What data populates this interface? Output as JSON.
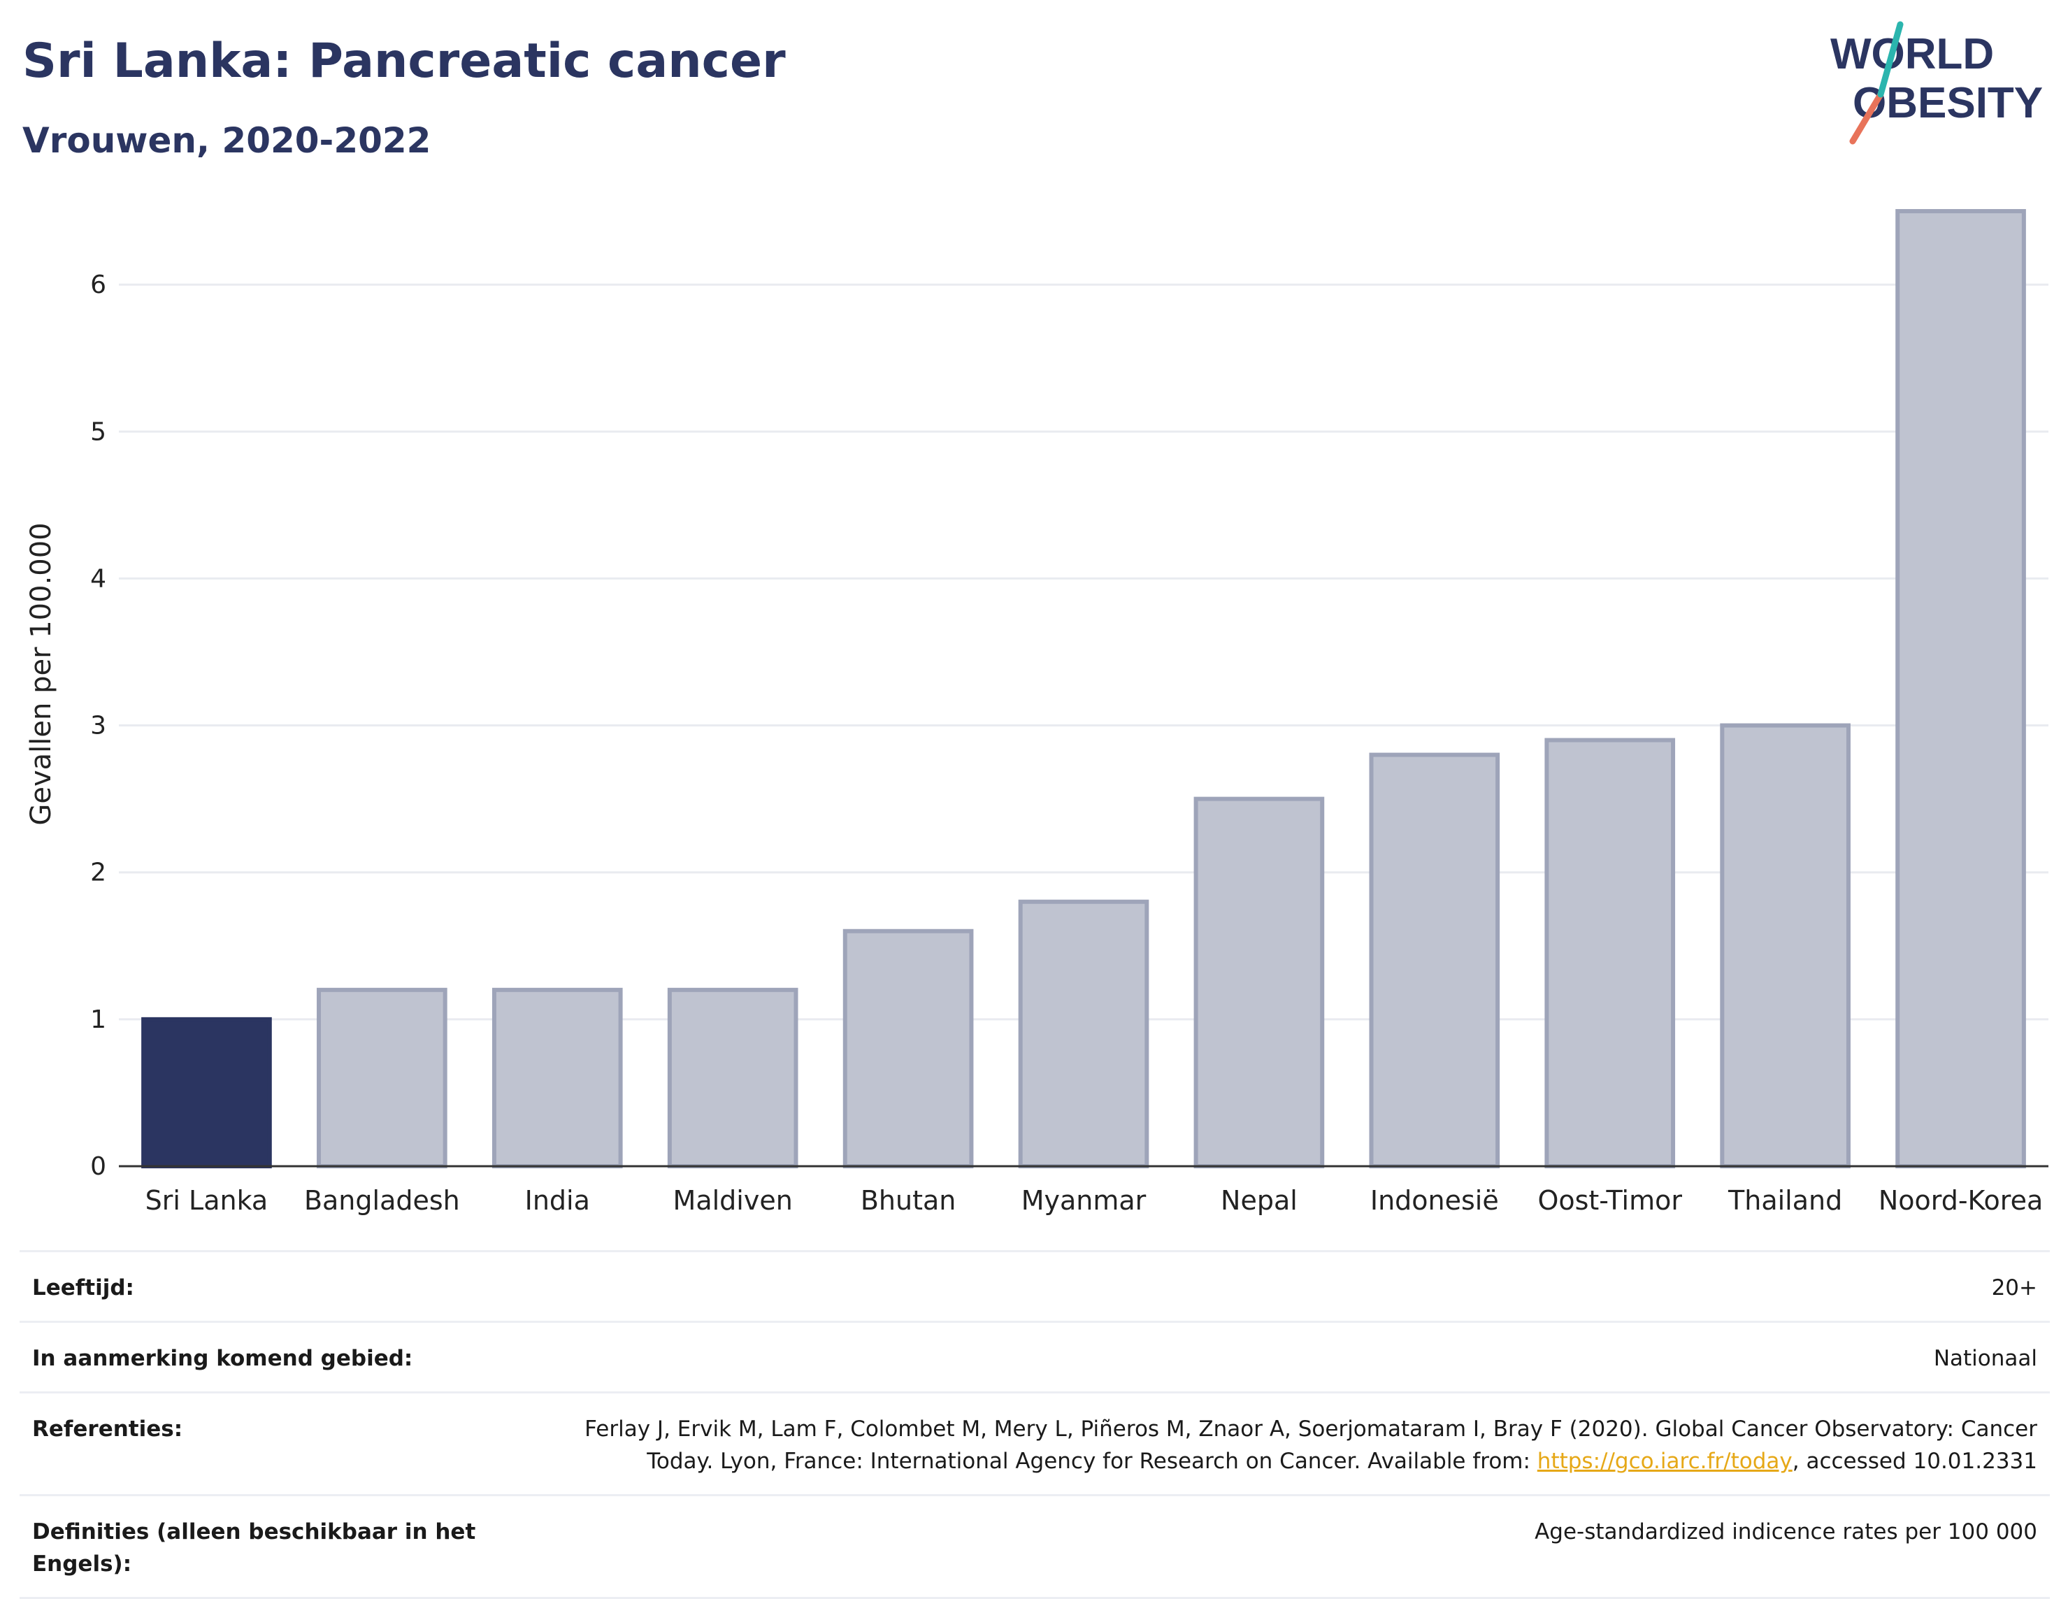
{
  "header": {
    "title": "Sri Lanka: Pancreatic cancer",
    "subtitle": "Vrouwen, 2020-2022"
  },
  "logo": {
    "line1": "WORLD",
    "line2": "OBESITY",
    "icon": "world-obesity-logo"
  },
  "colors": {
    "highlight": "#2b3561",
    "bar": "#bfc3d0",
    "bar_edge": "#9ea4b9",
    "grid": "#e9ebf0",
    "title": "#2b3561",
    "link": "#e6a817"
  },
  "chart_data": {
    "type": "bar",
    "categories": [
      "Sri Lanka",
      "Bangladesh",
      "India",
      "Maldiven",
      "Bhutan",
      "Myanmar",
      "Nepal",
      "Indonesië",
      "Oost-Timor",
      "Thailand",
      "Noord-Korea"
    ],
    "values": [
      1.0,
      1.2,
      1.2,
      1.2,
      1.6,
      1.8,
      2.5,
      2.8,
      2.9,
      3.0,
      6.5
    ],
    "highlight": "Sri Lanka",
    "ylabel": "Gevallen per 100.000",
    "ylim": [
      0,
      6.7
    ],
    "yticks": [
      0,
      1,
      2,
      3,
      4,
      5,
      6
    ],
    "grid": true
  },
  "footer": {
    "rows": [
      {
        "label": "Leeftijd:",
        "value": "20+"
      },
      {
        "label": "In aanmerking komend gebied:",
        "value": "Nationaal"
      },
      {
        "label": "Referenties:",
        "value_before": "Ferlay J, Ervik M, Lam F, Colombet M, Mery L, Piñeros M, Znaor A, Soerjomataram I, Bray F (2020). Global Cancer Observatory: Cancer Today. Lyon, France: International Agency for Research on Cancer. Available from: ",
        "link": "https://gco.iarc.fr/today",
        "value_after": ", accessed 10.01.2331"
      },
      {
        "label": "Definities (alleen beschikbaar in het Engels):",
        "value": "Age-standardized indicence rates per 100 000"
      }
    ]
  }
}
